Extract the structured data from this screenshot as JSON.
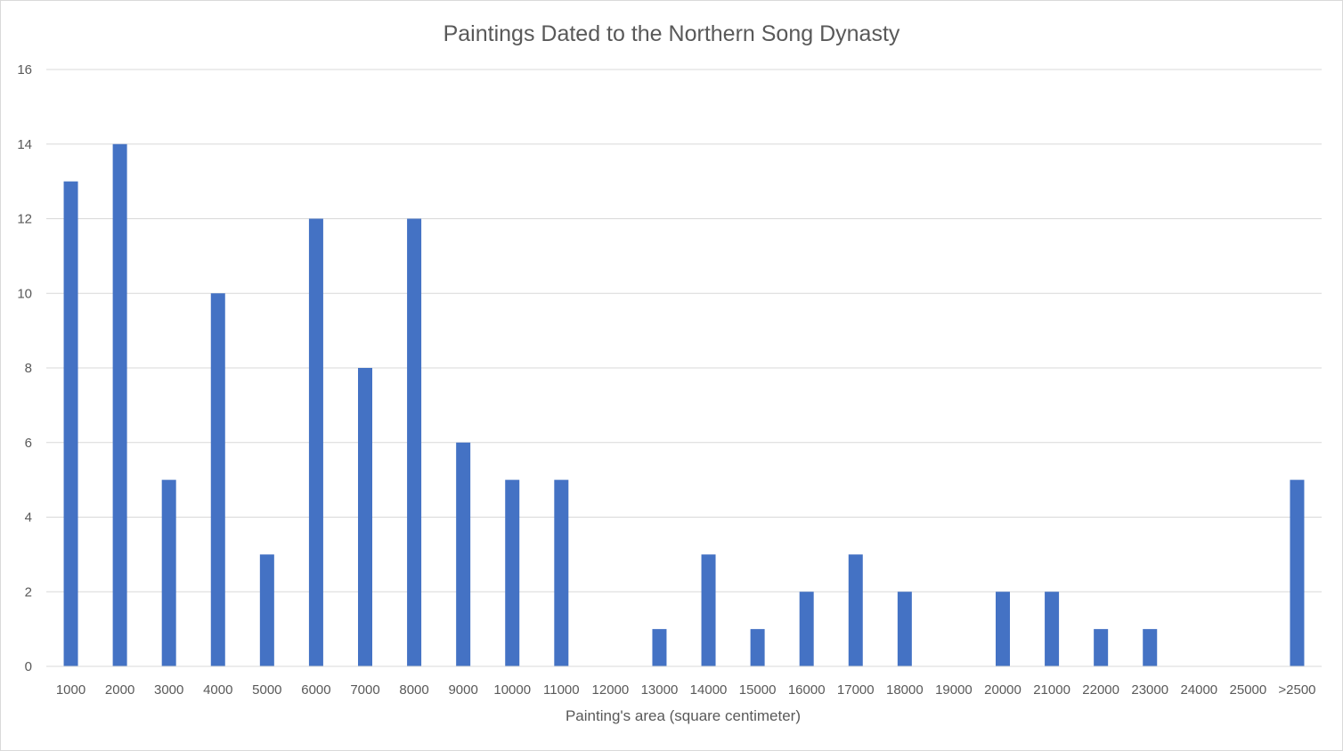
{
  "chart_data": {
    "type": "bar",
    "title": "Paintings Dated to the Northern Song Dynasty",
    "xlabel": "Painting's area (square centimeter)",
    "ylabel": "",
    "categories": [
      "1000",
      "2000",
      "3000",
      "4000",
      "5000",
      "6000",
      "7000",
      "8000",
      "9000",
      "10000",
      "11000",
      "12000",
      "13000",
      "14000",
      "15000",
      "16000",
      "17000",
      "18000",
      "19000",
      "20000",
      "21000",
      "22000",
      "23000",
      "24000",
      "25000",
      ">2500"
    ],
    "values": [
      13,
      14,
      5,
      10,
      3,
      12,
      8,
      12,
      6,
      5,
      5,
      0,
      1,
      3,
      1,
      2,
      3,
      2,
      0,
      2,
      2,
      1,
      1,
      0,
      0,
      5
    ],
    "ylim": [
      0,
      16
    ],
    "yticks": [
      0,
      2,
      4,
      6,
      8,
      10,
      12,
      14,
      16
    ],
    "grid": true,
    "legend": "none",
    "bar_color": "#4472c4"
  }
}
